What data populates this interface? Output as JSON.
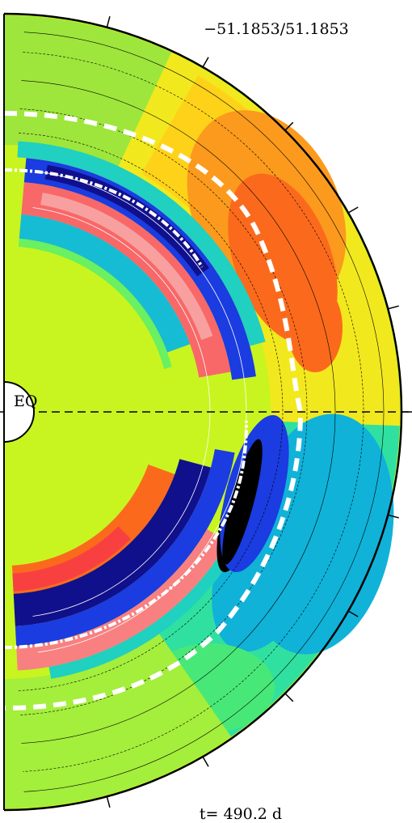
{
  "header": {
    "range": "−51.1853/51.1853"
  },
  "equator_label": "EQ",
  "footer": {
    "time": "t= 490.2 d"
  }
}
